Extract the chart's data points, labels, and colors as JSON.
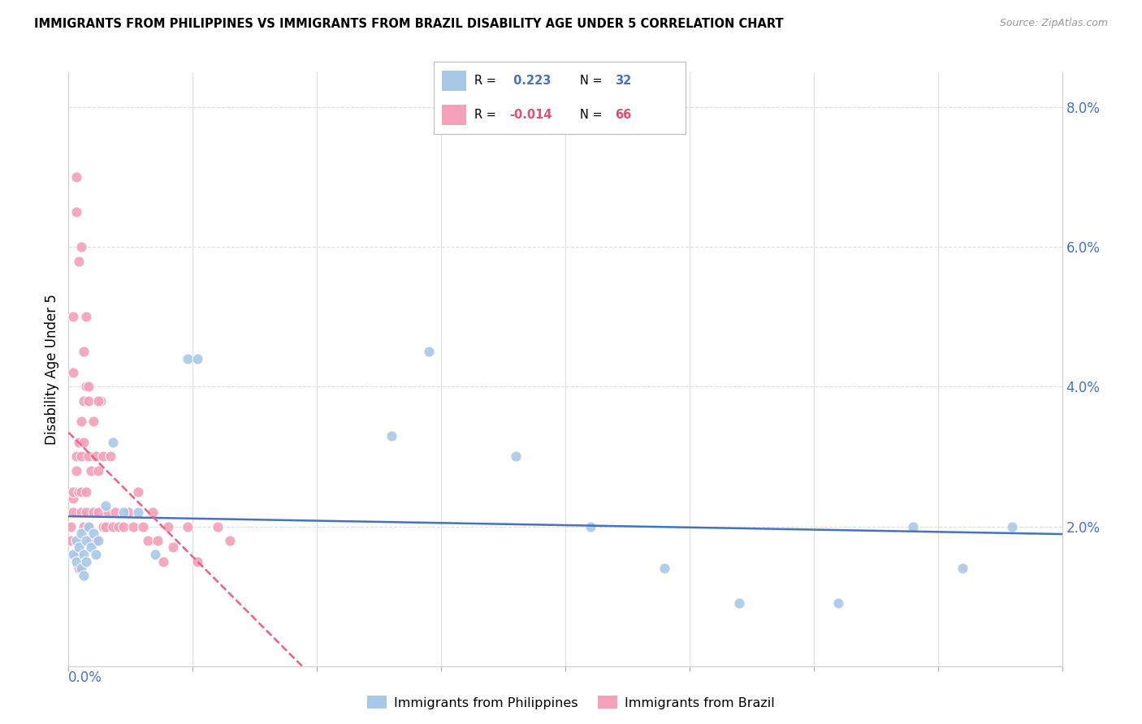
{
  "title": "IMMIGRANTS FROM PHILIPPINES VS IMMIGRANTS FROM BRAZIL DISABILITY AGE UNDER 5 CORRELATION CHART",
  "source": "Source: ZipAtlas.com",
  "ylabel": "Disability Age Under 5",
  "philippines_color": "#a8c8e8",
  "brazil_color": "#f4a0b8",
  "philippines_line_color": "#4472c4",
  "brazil_line_color": "#f06080",
  "philippines_r": "0.223",
  "philippines_n": "32",
  "brazil_r": "-0.014",
  "brazil_n": "66",
  "philippines_scatter_x": [
    0.002,
    0.003,
    0.003,
    0.004,
    0.005,
    0.005,
    0.006,
    0.006,
    0.007,
    0.007,
    0.008,
    0.009,
    0.01,
    0.011,
    0.012,
    0.015,
    0.018,
    0.022,
    0.028,
    0.035,
    0.048,
    0.052,
    0.13,
    0.145,
    0.18,
    0.21,
    0.24,
    0.27,
    0.31,
    0.34,
    0.36,
    0.38
  ],
  "philippines_scatter_y": [
    0.016,
    0.018,
    0.015,
    0.017,
    0.019,
    0.014,
    0.016,
    0.013,
    0.018,
    0.015,
    0.02,
    0.017,
    0.019,
    0.016,
    0.018,
    0.023,
    0.032,
    0.022,
    0.022,
    0.016,
    0.044,
    0.044,
    0.033,
    0.045,
    0.03,
    0.02,
    0.014,
    0.009,
    0.009,
    0.02,
    0.014,
    0.02
  ],
  "brazil_scatter_x": [
    0.001,
    0.001,
    0.002,
    0.002,
    0.002,
    0.003,
    0.003,
    0.003,
    0.004,
    0.004,
    0.004,
    0.005,
    0.005,
    0.005,
    0.005,
    0.006,
    0.006,
    0.006,
    0.007,
    0.007,
    0.007,
    0.008,
    0.008,
    0.008,
    0.009,
    0.009,
    0.01,
    0.01,
    0.011,
    0.011,
    0.012,
    0.012,
    0.013,
    0.014,
    0.014,
    0.015,
    0.016,
    0.017,
    0.018,
    0.019,
    0.02,
    0.022,
    0.024,
    0.026,
    0.028,
    0.03,
    0.032,
    0.034,
    0.036,
    0.038,
    0.04,
    0.042,
    0.048,
    0.052,
    0.06,
    0.065,
    0.003,
    0.003,
    0.004,
    0.005,
    0.002,
    0.002,
    0.006,
    0.007,
    0.008,
    0.012
  ],
  "brazil_scatter_y": [
    0.02,
    0.018,
    0.024,
    0.022,
    0.025,
    0.03,
    0.028,
    0.016,
    0.032,
    0.025,
    0.014,
    0.035,
    0.03,
    0.025,
    0.022,
    0.038,
    0.032,
    0.02,
    0.04,
    0.025,
    0.022,
    0.038,
    0.03,
    0.02,
    0.028,
    0.018,
    0.035,
    0.022,
    0.03,
    0.018,
    0.028,
    0.022,
    0.038,
    0.03,
    0.02,
    0.02,
    0.022,
    0.03,
    0.02,
    0.022,
    0.02,
    0.02,
    0.022,
    0.02,
    0.025,
    0.02,
    0.018,
    0.022,
    0.018,
    0.015,
    0.02,
    0.017,
    0.02,
    0.015,
    0.02,
    0.018,
    0.065,
    0.07,
    0.058,
    0.06,
    0.05,
    0.042,
    0.045,
    0.05,
    0.04,
    0.038
  ],
  "xlim": [
    0.0,
    0.4
  ],
  "ylim": [
    0.0,
    0.085
  ],
  "xticks": [
    0.0,
    0.05,
    0.1,
    0.15,
    0.2,
    0.25,
    0.3,
    0.35,
    0.4
  ],
  "yticks": [
    0.0,
    0.02,
    0.04,
    0.06,
    0.08
  ],
  "yticklabels": [
    "",
    "2.0%",
    "4.0%",
    "6.0%",
    "8.0%"
  ],
  "background_color": "#ffffff",
  "grid_color": "#dddddd"
}
